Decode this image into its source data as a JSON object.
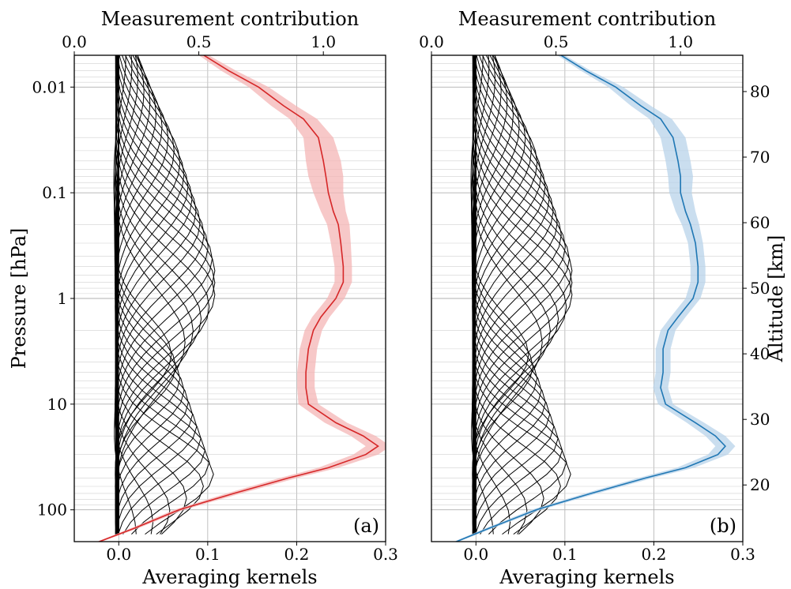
{
  "chart_data": [
    {
      "type": "line",
      "panel": "(a)",
      "title": "",
      "xlabel": "Averaging kernels",
      "ylabel": "Pressure [hPa]",
      "x2label": "Measurement contribution",
      "xlim": [
        -0.05,
        0.3
      ],
      "x_ticks": [
        "0.0",
        "0.1",
        "0.2",
        "0.3"
      ],
      "ylim": [
        200,
        0.005
      ],
      "y_scale": "log",
      "y_ticks": [
        "0.01",
        "0.1",
        "1",
        "10",
        "100"
      ],
      "x2lim": [
        0.0,
        1.25
      ],
      "x2_ticks": [
        "0.0",
        "0.5",
        "1.0"
      ],
      "grid": true,
      "kernel_count": 41,
      "kernel_color": "#000000",
      "mc_color": "#d62728",
      "mc_band_color": "#f4b6b6",
      "measurement_contribution": {
        "pressure": [
          0.005,
          0.007,
          0.01,
          0.015,
          0.02,
          0.03,
          0.05,
          0.07,
          0.1,
          0.15,
          0.2,
          0.3,
          0.5,
          0.7,
          1,
          1.5,
          2,
          3,
          5,
          7,
          10,
          15,
          20,
          25,
          30,
          40,
          50,
          70,
          100,
          150,
          200
        ],
        "value": [
          0.52,
          0.62,
          0.74,
          0.84,
          0.92,
          0.98,
          1.0,
          1.01,
          1.02,
          1.04,
          1.06,
          1.07,
          1.08,
          1.08,
          1.05,
          0.99,
          0.96,
          0.94,
          0.93,
          0.93,
          0.94,
          1.05,
          1.16,
          1.22,
          1.17,
          1.02,
          0.86,
          0.64,
          0.42,
          0.24,
          0.1
        ],
        "spread": [
          0.02,
          0.03,
          0.04,
          0.05,
          0.055,
          0.06,
          0.07,
          0.07,
          0.06,
          0.05,
          0.045,
          0.04,
          0.035,
          0.035,
          0.035,
          0.035,
          0.035,
          0.035,
          0.035,
          0.035,
          0.04,
          0.045,
          0.05,
          0.05,
          0.05,
          0.04,
          0.035,
          0.03,
          0.02,
          0.015,
          0.01
        ]
      }
    },
    {
      "type": "line",
      "panel": "(b)",
      "title": "",
      "xlabel": "Averaging kernels",
      "ylabel": "Altitude [km]",
      "x2label": "Measurement contribution",
      "xlim": [
        -0.05,
        0.3
      ],
      "x_ticks": [
        "0.0",
        "0.1",
        "0.2",
        "0.3"
      ],
      "ylim": [
        200,
        0.005
      ],
      "y_scale": "log",
      "y2_ticks": [
        "20",
        "30",
        "40",
        "50",
        "60",
        "70",
        "80"
      ],
      "x2lim": [
        0.0,
        1.25
      ],
      "x2_ticks": [
        "0.0",
        "0.5",
        "1.0"
      ],
      "grid": true,
      "kernel_count": 41,
      "kernel_color": "#000000",
      "mc_color": "#1f77b4",
      "mc_band_color": "#b8d3ea",
      "measurement_contribution": {
        "pressure": [
          0.005,
          0.007,
          0.01,
          0.015,
          0.02,
          0.03,
          0.05,
          0.07,
          0.1,
          0.15,
          0.2,
          0.3,
          0.5,
          0.7,
          1,
          1.5,
          2,
          3,
          5,
          7,
          10,
          15,
          20,
          25,
          30,
          40,
          50,
          70,
          100,
          150,
          200
        ],
        "value": [
          0.52,
          0.62,
          0.74,
          0.84,
          0.92,
          0.97,
          0.99,
          1.0,
          1.0,
          1.02,
          1.04,
          1.06,
          1.07,
          1.07,
          1.05,
          0.99,
          0.95,
          0.93,
          0.93,
          0.92,
          0.94,
          1.06,
          1.14,
          1.18,
          1.15,
          1.02,
          0.86,
          0.64,
          0.42,
          0.23,
          0.1
        ],
        "spread": [
          0.015,
          0.02,
          0.03,
          0.04,
          0.045,
          0.05,
          0.05,
          0.05,
          0.045,
          0.04,
          0.035,
          0.03,
          0.03,
          0.03,
          0.03,
          0.03,
          0.03,
          0.03,
          0.03,
          0.03,
          0.03,
          0.035,
          0.04,
          0.04,
          0.04,
          0.035,
          0.03,
          0.025,
          0.02,
          0.015,
          0.01
        ]
      }
    }
  ]
}
